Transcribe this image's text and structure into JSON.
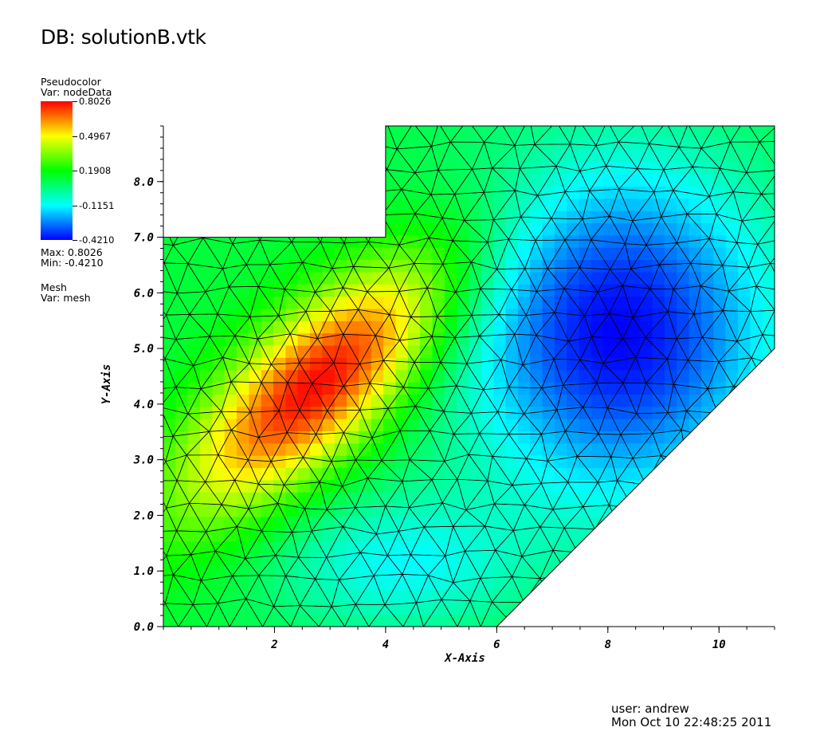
{
  "header": {
    "title": "DB: solutionB.vtk"
  },
  "legend": {
    "plot_type": "Pseudocolor",
    "var_line": "Var: nodeData",
    "colorbar_ticks": [
      "0.8026",
      "0.4967",
      "0.1908",
      "-0.1151",
      "-0.4210"
    ],
    "max_line": "Max:  0.8026",
    "min_line": "Min: -0.4210",
    "mesh_type": "Mesh",
    "mesh_var_line": "Var: mesh",
    "colors": [
      "#ff0000",
      "#ffff00",
      "#00ff00",
      "#00ffff",
      "#0000ff"
    ]
  },
  "footer": {
    "user": "user: andrew",
    "date": "Mon Oct 10 22:48:25 2011"
  },
  "chart_data": {
    "type": "heatmap",
    "xlabel": "X-Axis",
    "ylabel": "Y-Axis",
    "xlim": [
      0,
      11
    ],
    "ylim": [
      0,
      9
    ],
    "x_ticks": [
      2,
      4,
      6,
      8,
      10
    ],
    "x_tick_labels": [
      "2",
      "4",
      "6",
      "8",
      "10"
    ],
    "y_ticks": [
      0,
      1,
      2,
      3,
      4,
      5,
      6,
      7,
      8
    ],
    "y_tick_labels": [
      "0.0",
      "1.0",
      "2.0",
      "3.0",
      "4.0",
      "5.0",
      "6.0",
      "7.0",
      "8.0"
    ],
    "value_range": [
      -0.421,
      0.8026
    ],
    "domain_polygon": [
      [
        0,
        0
      ],
      [
        6,
        0
      ],
      [
        11,
        5
      ],
      [
        11,
        9
      ],
      [
        4,
        9
      ],
      [
        4,
        7
      ],
      [
        0,
        7
      ]
    ],
    "field_extrema": [
      {
        "x": 2.8,
        "y": 4.4,
        "value": 0.8026
      },
      {
        "x": 8.2,
        "y": 5.3,
        "value": -0.421
      }
    ],
    "mesh": "triangular"
  }
}
